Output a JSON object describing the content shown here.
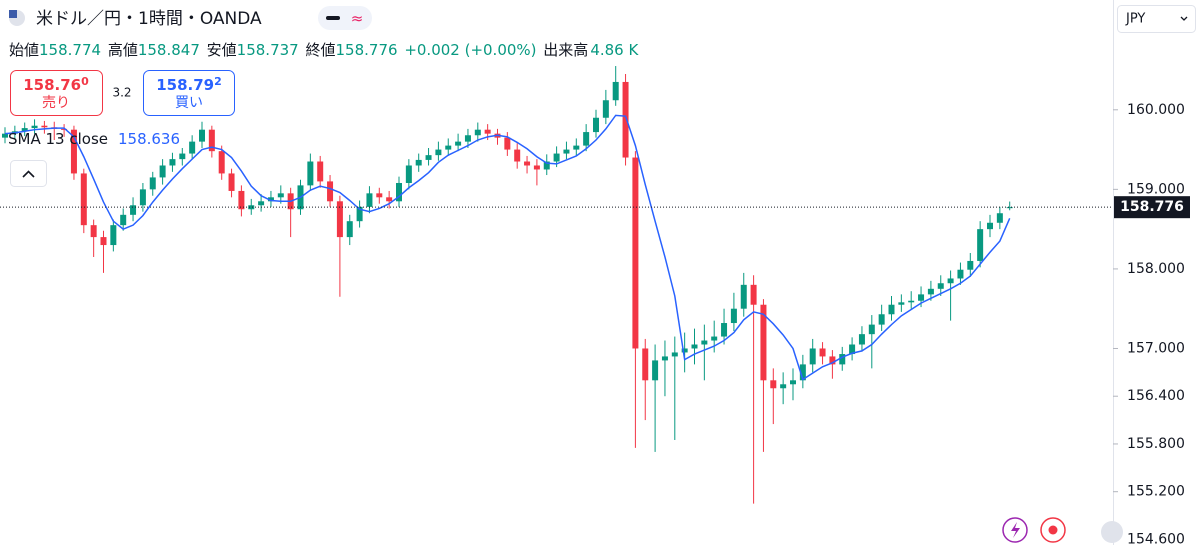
{
  "chart_data": {
    "type": "candlestick",
    "title": "米ドル／円・1時間・OANDA",
    "ohlc_labels": [
      "始値",
      "高値",
      "安値",
      "終値"
    ],
    "change": "+0.002 (+0.00%)",
    "volume_label": "出来高",
    "volume": "4.86 K",
    "sell_price": "158.76",
    "sell_pip": "0",
    "sell_label": "売り",
    "spread": 3.2,
    "buy_price": "158.79",
    "buy_pip": "2",
    "buy_label": "買い",
    "currency": "JPY",
    "up_color": "#089981",
    "down_color": "#f23645",
    "ylim": [
      154.53,
      161.38
    ],
    "yticks": [
      {
        "value": 160,
        "label": "160.000"
      },
      {
        "value": 159,
        "label": "159.000"
      },
      {
        "value": 158,
        "label": "158.000"
      },
      {
        "value": 157,
        "label": "157.000"
      },
      {
        "value": 156.4,
        "label": "156.400"
      },
      {
        "value": 155.8,
        "label": "155.800"
      },
      {
        "value": 155.2,
        "label": "155.200"
      },
      {
        "value": 154.6,
        "label": "154.600"
      }
    ],
    "last_price": 158.776,
    "ohlc": [
      [
        159.65,
        159.78,
        159.58,
        159.7
      ],
      [
        159.7,
        159.8,
        159.64,
        159.73
      ],
      [
        159.73,
        159.84,
        159.67,
        159.77
      ],
      [
        159.77,
        159.88,
        159.7,
        159.8
      ],
      [
        159.8,
        159.86,
        159.7,
        159.78
      ],
      [
        159.78,
        159.85,
        159.62,
        159.76
      ],
      [
        159.76,
        159.82,
        159.66,
        159.75
      ],
      [
        159.75,
        159.8,
        159.12,
        159.2
      ],
      [
        159.2,
        159.26,
        158.45,
        158.55
      ],
      [
        158.55,
        158.62,
        158.15,
        158.4
      ],
      [
        158.4,
        158.48,
        157.95,
        158.3
      ],
      [
        158.3,
        158.62,
        158.22,
        158.55
      ],
      [
        158.55,
        158.76,
        158.48,
        158.68
      ],
      [
        158.68,
        158.9,
        158.6,
        158.8
      ],
      [
        158.8,
        159.08,
        158.72,
        159.0
      ],
      [
        159.0,
        159.22,
        158.92,
        159.15
      ],
      [
        159.15,
        159.38,
        159.06,
        159.3
      ],
      [
        159.3,
        159.46,
        159.22,
        159.38
      ],
      [
        159.38,
        159.52,
        159.3,
        159.45
      ],
      [
        159.45,
        159.68,
        159.38,
        159.6
      ],
      [
        159.6,
        159.85,
        159.52,
        159.75
      ],
      [
        159.75,
        159.8,
        159.4,
        159.48
      ],
      [
        159.48,
        159.55,
        159.12,
        159.2
      ],
      [
        159.2,
        159.26,
        158.9,
        158.98
      ],
      [
        158.98,
        159.05,
        158.66,
        158.75
      ],
      [
        158.75,
        158.88,
        158.68,
        158.8
      ],
      [
        158.8,
        158.94,
        158.72,
        158.85
      ],
      [
        158.85,
        158.98,
        158.78,
        158.9
      ],
      [
        158.9,
        159.05,
        158.82,
        158.95
      ],
      [
        158.95,
        159.02,
        158.4,
        158.75
      ],
      [
        158.75,
        159.12,
        158.68,
        159.05
      ],
      [
        159.05,
        159.45,
        158.98,
        159.35
      ],
      [
        159.35,
        159.42,
        159.02,
        159.1
      ],
      [
        159.1,
        159.18,
        158.78,
        158.85
      ],
      [
        158.85,
        158.92,
        157.65,
        158.4
      ],
      [
        158.4,
        158.68,
        158.3,
        158.6
      ],
      [
        158.6,
        158.86,
        158.52,
        158.78
      ],
      [
        158.78,
        159.04,
        158.7,
        158.95
      ],
      [
        158.95,
        159.02,
        158.82,
        158.9
      ],
      [
        158.9,
        158.98,
        158.76,
        158.85
      ],
      [
        158.85,
        159.16,
        158.78,
        159.08
      ],
      [
        159.08,
        159.38,
        159.0,
        159.3
      ],
      [
        159.3,
        159.45,
        159.22,
        159.37
      ],
      [
        159.37,
        159.52,
        159.3,
        159.43
      ],
      [
        159.43,
        159.6,
        159.36,
        159.5
      ],
      [
        159.5,
        159.64,
        159.42,
        159.55
      ],
      [
        159.55,
        159.7,
        159.48,
        159.6
      ],
      [
        159.6,
        159.76,
        159.52,
        159.68
      ],
      [
        159.68,
        159.84,
        159.6,
        159.75
      ],
      [
        159.75,
        159.82,
        159.62,
        159.7
      ],
      [
        159.7,
        159.76,
        159.56,
        159.65
      ],
      [
        159.65,
        159.72,
        159.42,
        159.5
      ],
      [
        159.5,
        159.58,
        159.26,
        159.35
      ],
      [
        159.35,
        159.42,
        159.2,
        159.3
      ],
      [
        159.3,
        159.38,
        159.05,
        159.25
      ],
      [
        159.25,
        159.44,
        159.18,
        159.35
      ],
      [
        159.35,
        159.54,
        159.28,
        159.45
      ],
      [
        159.45,
        159.6,
        159.38,
        159.5
      ],
      [
        159.5,
        159.64,
        159.42,
        159.55
      ],
      [
        159.55,
        159.82,
        159.48,
        159.72
      ],
      [
        159.72,
        160.0,
        159.65,
        159.9
      ],
      [
        159.9,
        160.25,
        159.82,
        160.12
      ],
      [
        160.12,
        160.55,
        160.05,
        160.35
      ],
      [
        160.35,
        160.45,
        159.3,
        159.4
      ],
      [
        159.4,
        159.48,
        155.75,
        157.0
      ],
      [
        157.0,
        157.12,
        156.1,
        156.6
      ],
      [
        156.6,
        157.05,
        155.7,
        156.85
      ],
      [
        156.85,
        157.1,
        156.4,
        156.9
      ],
      [
        156.9,
        157.15,
        155.85,
        156.95
      ],
      [
        156.95,
        157.2,
        156.7,
        157.0
      ],
      [
        157.0,
        157.25,
        156.8,
        157.05
      ],
      [
        157.05,
        157.3,
        156.6,
        157.1
      ],
      [
        157.1,
        157.35,
        156.95,
        157.15
      ],
      [
        157.15,
        157.5,
        157.05,
        157.32
      ],
      [
        157.32,
        157.7,
        157.22,
        157.5
      ],
      [
        157.5,
        157.95,
        157.4,
        157.8
      ],
      [
        157.8,
        157.92,
        155.05,
        157.55
      ],
      [
        157.55,
        157.62,
        155.7,
        156.6
      ],
      [
        156.6,
        156.75,
        156.05,
        156.5
      ],
      [
        156.5,
        156.7,
        156.3,
        156.55
      ],
      [
        156.55,
        156.75,
        156.35,
        156.6
      ],
      [
        156.6,
        156.92,
        156.5,
        156.8
      ],
      [
        156.8,
        157.12,
        156.7,
        157.0
      ],
      [
        157.0,
        157.08,
        156.8,
        156.9
      ],
      [
        156.9,
        156.98,
        156.62,
        156.8
      ],
      [
        156.8,
        157.02,
        156.72,
        156.93
      ],
      [
        156.93,
        157.14,
        156.85,
        157.05
      ],
      [
        157.05,
        157.28,
        156.96,
        157.18
      ],
      [
        157.18,
        157.42,
        156.75,
        157.3
      ],
      [
        157.3,
        157.55,
        157.22,
        157.43
      ],
      [
        157.43,
        157.66,
        157.35,
        157.55
      ],
      [
        157.55,
        157.68,
        157.46,
        157.58
      ],
      [
        157.58,
        157.72,
        157.5,
        157.6
      ],
      [
        157.6,
        157.78,
        157.52,
        157.68
      ],
      [
        157.68,
        157.85,
        157.6,
        157.75
      ],
      [
        157.75,
        157.92,
        157.66,
        157.82
      ],
      [
        157.82,
        157.98,
        157.35,
        157.88
      ],
      [
        157.88,
        158.08,
        157.8,
        157.99
      ],
      [
        157.99,
        158.2,
        157.9,
        158.1
      ],
      [
        158.1,
        158.6,
        158.02,
        158.5
      ],
      [
        158.5,
        158.68,
        158.4,
        158.58
      ],
      [
        158.58,
        158.78,
        158.5,
        158.7
      ],
      [
        158.774,
        158.847,
        158.737,
        158.776
      ]
    ],
    "sma": {
      "name": "SMA 13 close",
      "color": "#2962ff",
      "values": [
        159.7,
        159.71,
        159.73,
        159.75,
        159.76,
        159.77,
        159.77,
        159.66,
        159.41,
        159.13,
        158.84,
        158.6,
        158.5,
        158.55,
        158.67,
        158.84,
        158.99,
        159.13,
        159.26,
        159.38,
        159.5,
        159.53,
        159.5,
        159.4,
        159.23,
        159.04,
        158.92,
        158.86,
        158.85,
        158.85,
        158.9,
        158.99,
        159.04,
        159.01,
        158.96,
        158.86,
        158.75,
        158.72,
        158.76,
        158.82,
        158.91,
        159.02,
        159.11,
        159.21,
        159.34,
        159.43,
        159.49,
        159.55,
        159.62,
        159.66,
        159.68,
        159.66,
        159.59,
        159.51,
        159.41,
        159.33,
        159.32,
        159.37,
        159.42,
        159.51,
        159.62,
        159.76,
        159.93,
        159.92,
        159.55,
        159.06,
        158.6,
        158.15,
        157.66,
        156.86,
        156.93,
        156.98,
        157.03,
        157.1,
        157.2,
        157.36,
        157.46,
        157.43,
        157.31,
        157.17,
        157.0,
        156.61,
        156.69,
        156.77,
        156.82,
        156.89,
        156.94,
        156.97,
        157.05,
        157.18,
        157.3,
        157.41,
        157.49,
        157.57,
        157.63,
        157.69,
        157.75,
        157.82,
        157.91,
        158.06,
        158.21,
        158.35,
        158.636
      ]
    }
  }
}
